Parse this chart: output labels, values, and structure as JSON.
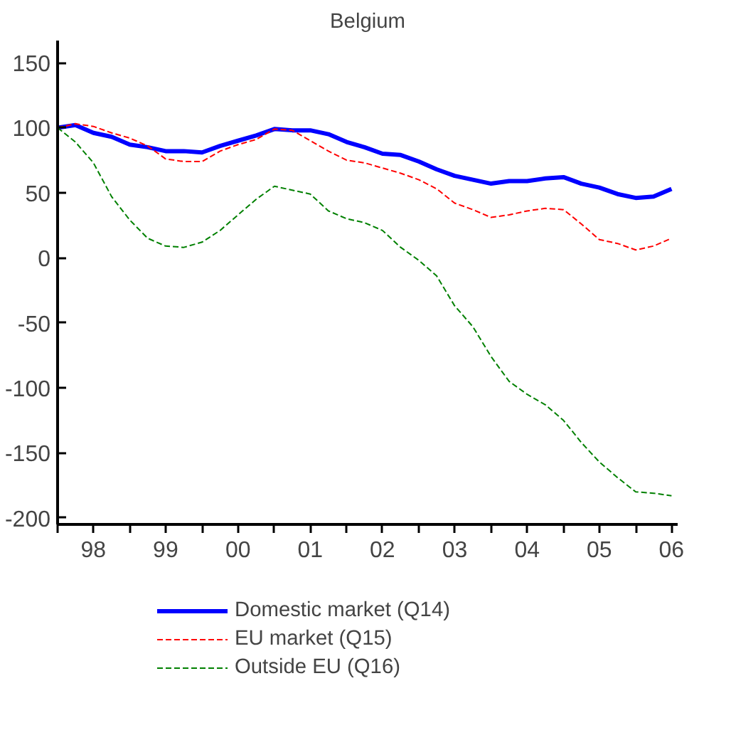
{
  "chart_data": {
    "type": "line",
    "title": "Belgium",
    "x": [
      "1998-01",
      "1998-04",
      "1998-07",
      "1998-10",
      "1999-01",
      "1999-04",
      "1999-07",
      "1999-10",
      "2000-01",
      "2000-04",
      "2000-07",
      "2000-10",
      "2001-01",
      "2001-04",
      "2001-07",
      "2001-10",
      "2002-01",
      "2002-04",
      "2002-07",
      "2002-10",
      "2003-01",
      "2003-04",
      "2003-07",
      "2003-10",
      "2004-01",
      "2004-04",
      "2004-07",
      "2004-10",
      "2005-01",
      "2005-04",
      "2005-07",
      "2005-10",
      "2006-01",
      "2006-04",
      "2006-07"
    ],
    "series": [
      {
        "name": "Domestic market (Q14)",
        "color": "#0000ff",
        "line_style": "solid",
        "values": [
          100,
          102,
          96,
          93,
          87,
          85,
          82,
          82,
          81,
          86,
          90,
          94,
          99,
          98,
          98,
          95,
          89,
          85,
          80,
          79,
          74,
          68,
          63,
          60,
          57,
          59,
          59,
          61,
          62,
          57,
          54,
          49,
          46,
          47,
          53
        ]
      },
      {
        "name": "EU market (Q15)",
        "color": "#ff0000",
        "line_style": "dashed",
        "values": [
          100,
          103,
          101,
          96,
          92,
          86,
          76,
          74,
          74,
          82,
          87,
          91,
          99,
          98,
          90,
          82,
          75,
          73,
          69,
          65,
          60,
          53,
          42,
          37,
          31,
          33,
          36,
          38,
          37,
          26,
          14,
          11,
          6,
          9,
          15
        ]
      },
      {
        "name": "Outside EU (Q16)",
        "color": "#008000",
        "line_style": "dashed",
        "values": [
          100,
          89,
          73,
          47,
          29,
          15,
          9,
          8,
          12,
          21,
          33,
          45,
          55,
          52,
          49,
          36,
          30,
          27,
          21,
          8,
          -2,
          -14,
          -37,
          -53,
          -76,
          -95,
          -105,
          -113,
          -125,
          -142,
          -157,
          -169,
          -180,
          -181,
          -183
        ]
      }
    ],
    "xlim": [
      "1998-01",
      "2006-08"
    ],
    "xticks": [
      {
        "value": "1998-01",
        "label": null
      },
      {
        "value": "1998-07",
        "label": "98"
      },
      {
        "value": "1999-01",
        "label": null
      },
      {
        "value": "1999-07",
        "label": "99"
      },
      {
        "value": "2000-01",
        "label": null
      },
      {
        "value": "2000-07",
        "label": "00"
      },
      {
        "value": "2001-01",
        "label": null
      },
      {
        "value": "2001-07",
        "label": "01"
      },
      {
        "value": "2002-01",
        "label": null
      },
      {
        "value": "2002-07",
        "label": "02"
      },
      {
        "value": "2003-01",
        "label": null
      },
      {
        "value": "2003-07",
        "label": "03"
      },
      {
        "value": "2004-01",
        "label": null
      },
      {
        "value": "2004-07",
        "label": "04"
      },
      {
        "value": "2005-01",
        "label": null
      },
      {
        "value": "2005-07",
        "label": "05"
      },
      {
        "value": "2006-01",
        "label": null
      },
      {
        "value": "2006-07",
        "label": "06"
      }
    ],
    "ylim": [
      -205,
      167
    ],
    "yticks": [
      -200,
      -150,
      -100,
      -50,
      0,
      50,
      100,
      150
    ],
    "grid": false,
    "legend": "bottom"
  }
}
